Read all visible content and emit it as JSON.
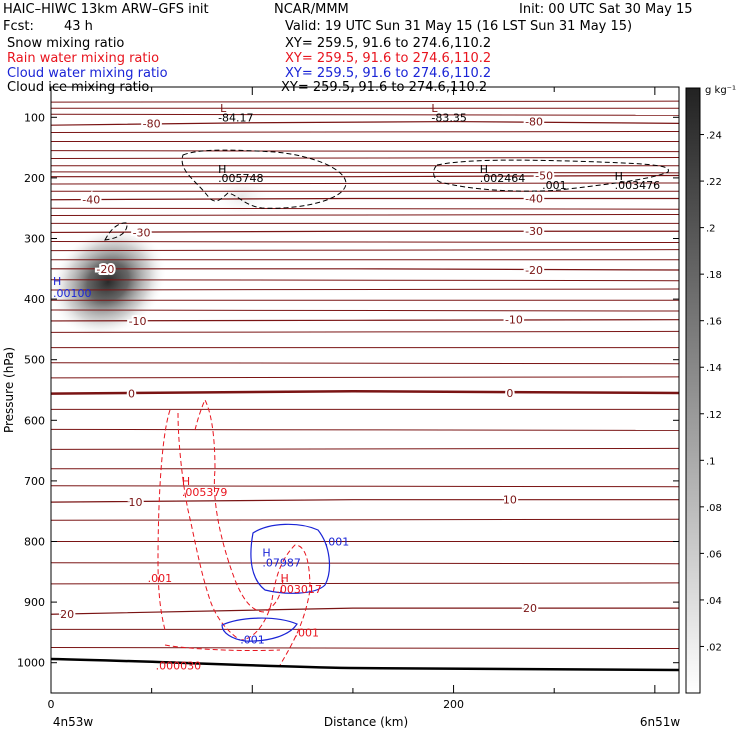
{
  "header": {
    "title": "HAIC–HIWC 13km ARW–GFS init",
    "org": "NCAR/MMM",
    "init": "Init: 00 UTC Sat 30 May 15",
    "fcst_label": "Fcst:",
    "fcst_value": "43 h",
    "valid": "Valid: 19 UTC Sun 31 May 15 (16 LST Sun 31 May 15)",
    "fields": [
      {
        "name": "Snow mixing ratio",
        "xy": "XY= 259.5, 91.6 to 274.6,110.2",
        "color": "#000000"
      },
      {
        "name": "Rain water mixing ratio",
        "xy": "XY= 259.5, 91.6 to 274.6,110.2",
        "color": "#e8141e"
      },
      {
        "name": "Cloud water mixing ratio",
        "xy": "XY= 259.5, 91.6 to 274.6,110.2",
        "color": "#1a24d6"
      },
      {
        "name": "Cloud ice mixing ratio",
        "xy": "XY= 259.5, 91.6 to 274.6,110.2",
        "color": "#000000"
      }
    ]
  },
  "chart_data": {
    "type": "heatmap",
    "title": "HAIC–HIWC 13km ARW–GFS init",
    "xlabel": "Distance (km)",
    "ylabel": "Pressure (hPa)",
    "x_range": [
      0,
      312
    ],
    "y_range": [
      1050,
      50
    ],
    "x_ticks": [
      0,
      200
    ],
    "x_end_labels": [
      "4n53w",
      "6n51w"
    ],
    "y_ticks": [
      100,
      200,
      300,
      400,
      500,
      600,
      700,
      800,
      900,
      1000
    ],
    "colorbar": {
      "unit": "g kg⁻¹",
      "ticks": [
        ".02",
        ".04",
        ".06",
        ".08",
        ".1",
        ".12",
        ".14",
        ".16",
        ".18",
        ".2",
        ".22",
        ".24"
      ],
      "tick_values": [
        0.02,
        0.04,
        0.06,
        0.08,
        0.1,
        0.12,
        0.14,
        0.16,
        0.18,
        0.2,
        0.22,
        0.24
      ],
      "range": [
        0,
        0.26
      ]
    },
    "snow_maxima": [
      {
        "x": 30,
        "p": 345,
        "value": 0.25
      },
      {
        "x": 100,
        "p": 200,
        "value": 0.02
      }
    ],
    "temperature_contours": {
      "color": "#7a1414",
      "lines": [
        {
          "label": "-80",
          "levels": [
            [
              0,
              113
            ],
            [
              100,
              109
            ],
            [
              200,
              107
            ],
            [
              312,
              110
            ]
          ],
          "label_positions": [
            [
              50,
              110
            ],
            [
              240,
              107
            ]
          ]
        },
        {
          "label": "-50",
          "levels": [
            [
              0,
              198
            ],
            [
              150,
              198
            ],
            [
              312,
              196
            ]
          ],
          "label_positions": [
            [
              245,
              196
            ]
          ]
        },
        {
          "label": "-40",
          "levels": [
            [
              0,
              236
            ],
            [
              150,
              234
            ],
            [
              312,
              234
            ]
          ],
          "label_positions": [
            [
              20,
              236
            ],
            [
              240,
              234
            ]
          ]
        },
        {
          "label": "-30",
          "levels": [
            [
              0,
              290
            ],
            [
              150,
              288
            ],
            [
              312,
              288
            ]
          ],
          "label_positions": [
            [
              45,
              290
            ],
            [
              240,
              288
            ]
          ]
        },
        {
          "label": "-20",
          "levels": [
            [
              0,
              350
            ],
            [
              150,
              350
            ],
            [
              312,
              352
            ]
          ],
          "label_positions": [
            [
              27,
              350
            ],
            [
              240,
              352
            ]
          ]
        },
        {
          "label": "-10",
          "levels": [
            [
              0,
              436
            ],
            [
              150,
              435
            ],
            [
              312,
              434
            ]
          ],
          "label_positions": [
            [
              43,
              436
            ],
            [
              230,
              434
            ]
          ]
        },
        {
          "label": "0",
          "levels": [
            [
              0,
              556
            ],
            [
              150,
              552
            ],
            [
              312,
              555
            ]
          ],
          "label_positions": [
            [
              40,
              556
            ],
            [
              228,
              555
            ]
          ]
        },
        {
          "label": "10",
          "levels": [
            [
              0,
              735
            ],
            [
              150,
              731
            ],
            [
              312,
              731
            ]
          ],
          "label_positions": [
            [
              42,
              735
            ],
            [
              228,
              731
            ]
          ]
        },
        {
          "label": "20",
          "levels": [
            [
              0,
              920
            ],
            [
              150,
              910
            ],
            [
              312,
              910
            ]
          ],
          "label_positions": [
            [
              8,
              920
            ],
            [
              238,
              910
            ]
          ]
        }
      ]
    },
    "isotherm_extra_levels": [
      75,
      85,
      95,
      125,
      140,
      155,
      168,
      180,
      190,
      210,
      222,
      250,
      262,
      275,
      305,
      320,
      335,
      368,
      385,
      402,
      418,
      455,
      480,
      505,
      530,
      582,
      615,
      648,
      680,
      708,
      765,
      800,
      835,
      870,
      945,
      975
    ],
    "snow_contours": [
      {
        "value": ".005748",
        "x": 83,
        "p": 200
      },
      {
        "value": ".002464",
        "x": 213,
        "p": 200
      },
      {
        "value": ".001",
        "x": 244,
        "p": 212
      },
      {
        "value": ".003476",
        "x": 280,
        "p": 212
      },
      {
        "value": ".00100",
        "x": 0,
        "p": 390
      }
    ],
    "rain_contours": [
      {
        "value": ".005379",
        "x": 65,
        "p": 718
      },
      {
        "value": ".003017",
        "x": 112,
        "p": 878
      },
      {
        "value": ".001",
        "x": 48,
        "p": 860
      },
      {
        "value": ".001",
        "x": 121,
        "p": 950
      },
      {
        "value": ".000030",
        "x": 52,
        "p": 1005
      }
    ],
    "cloud_water_contours": [
      {
        "value": ".07987",
        "x": 105,
        "p": 835
      },
      {
        "value": ".001",
        "x": 136,
        "p": 800
      },
      {
        "value": ".001",
        "x": 94,
        "p": 962
      }
    ],
    "labels": [
      {
        "text": "L",
        "x": 84,
        "p": 85,
        "color": "#7a1414"
      },
      {
        "text": "-84.17",
        "x": 83,
        "p": 100,
        "color": "#000000"
      },
      {
        "text": "L",
        "x": 189,
        "p": 85,
        "color": "#7a1414"
      },
      {
        "text": "-83.35",
        "x": 189,
        "p": 100,
        "color": "#000000"
      },
      {
        "text": "H",
        "x": 83,
        "p": 185,
        "color": "#000000"
      },
      {
        "text": "H",
        "x": 213,
        "p": 185,
        "color": "#000000"
      },
      {
        "text": "H",
        "x": 280,
        "p": 197,
        "color": "#000000"
      },
      {
        "text": "H",
        "x": 0,
        "p": 370,
        "color": "#1a24d6"
      },
      {
        "text": "H",
        "x": 65,
        "p": 700,
        "color": "#e8141e"
      },
      {
        "text": "H",
        "x": 105,
        "p": 818,
        "color": "#1a24d6"
      },
      {
        "text": "H",
        "x": 114,
        "p": 860,
        "color": "#e8141e"
      }
    ]
  }
}
